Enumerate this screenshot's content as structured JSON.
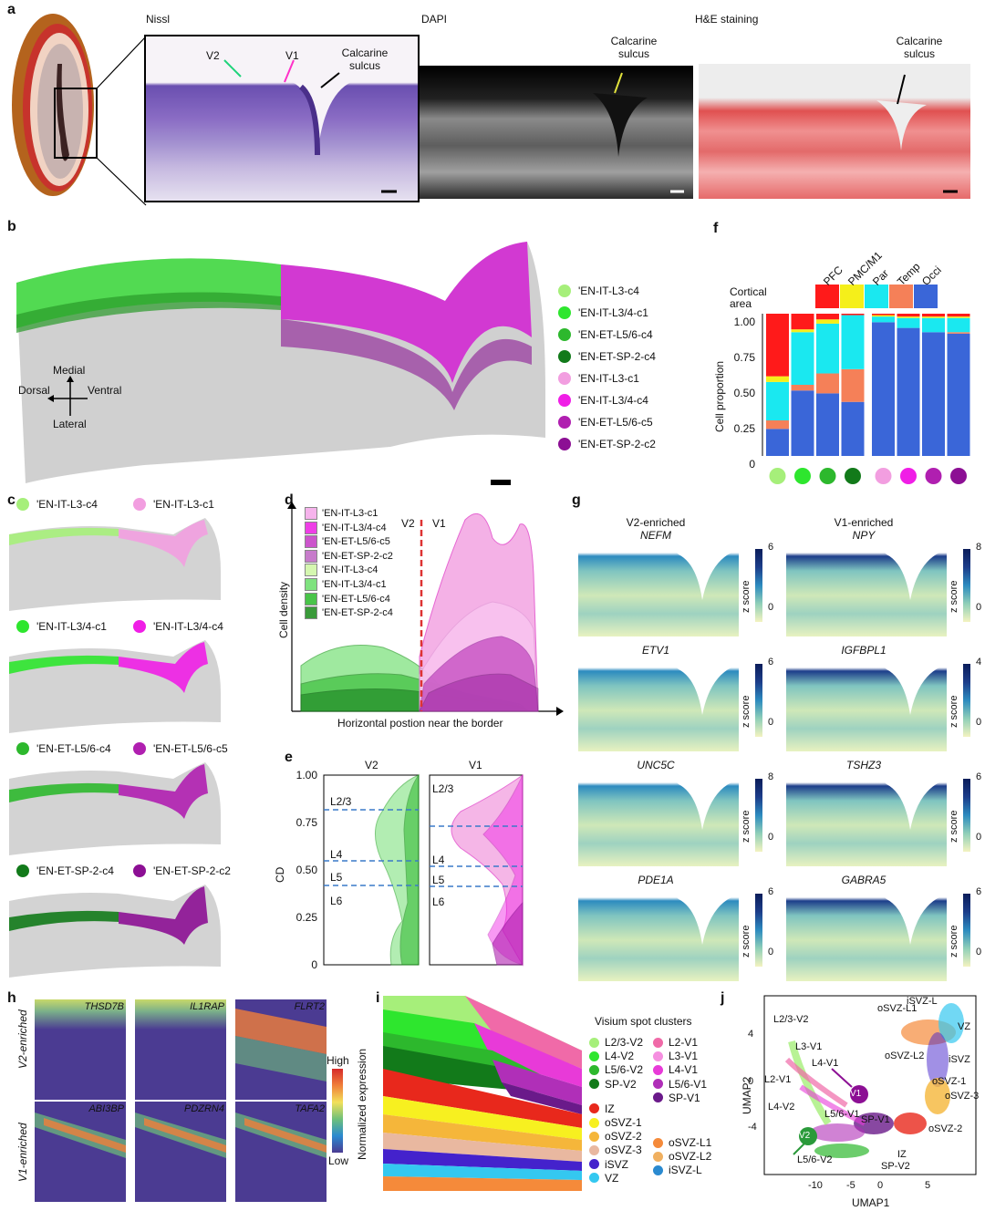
{
  "panels": {
    "a": "a",
    "b": "b",
    "c": "c",
    "d": "d",
    "e": "e",
    "f": "f",
    "g": "g",
    "h": "h",
    "i": "i",
    "j": "j"
  },
  "panel_a": {
    "titles": [
      "Nissl",
      "DAPI",
      "H&E staining"
    ],
    "nissl_labels": {
      "v2": "V2",
      "v1": "V1",
      "sulcus_1": "Calcarine",
      "sulcus_2": "sulcus"
    },
    "dapi_labels": {
      "sulcus_1": "Calcarine",
      "sulcus_2": "sulcus"
    },
    "he_labels": {
      "sulcus_1": "Calcarine",
      "sulcus_2": "sulcus"
    }
  },
  "panel_b": {
    "compass": {
      "medial": "Medial",
      "lateral": "Lateral",
      "dorsal": "Dorsal",
      "ventral": "Ventral"
    },
    "legend": [
      {
        "label": "'EN-IT-L3-c4",
        "color": "#a6ef7a"
      },
      {
        "label": "'EN-IT-L3/4-c1",
        "color": "#2ee62e"
      },
      {
        "label": "'EN-ET-L5/6-c4",
        "color": "#2db82d"
      },
      {
        "label": "'EN-ET-SP-2-c4",
        "color": "#127a1a"
      },
      {
        "label": "'EN-IT-L3-c1",
        "color": "#f29ee0"
      },
      {
        "label": "'EN-IT-L3/4-c4",
        "color": "#f01ee6"
      },
      {
        "label": "'EN-ET-L5/6-c5",
        "color": "#b01fb0"
      },
      {
        "label": "'EN-ET-SP-2-c2",
        "color": "#8c0f94"
      }
    ]
  },
  "panel_c": {
    "rows": [
      {
        "left": "'EN-IT-L3-c4",
        "left_color": "#a6ef7a",
        "right": "'EN-IT-L3-c1",
        "right_color": "#f29ee0"
      },
      {
        "left": "'EN-IT-L3/4-c1",
        "left_color": "#2ee62e",
        "right": "'EN-IT-L3/4-c4",
        "right_color": "#f01ee6"
      },
      {
        "left": "'EN-ET-L5/6-c4",
        "left_color": "#2db82d",
        "right": "'EN-ET-L5/6-c5",
        "right_color": "#b01fb0"
      },
      {
        "left": "'EN-ET-SP-2-c4",
        "left_color": "#127a1a",
        "right": "'EN-ET-SP-2-c2",
        "right_color": "#8c0f94"
      }
    ]
  },
  "panel_d": {
    "ylabel": "Cell density",
    "xlabel": "Horizontal postion near the border",
    "v2": "V2",
    "v1": "V1",
    "legend": [
      {
        "label": "'EN-IT-L3-c1",
        "color": "#f6b3ec"
      },
      {
        "label": "'EN-IT-L3/4-c4",
        "color": "#ee3fe6"
      },
      {
        "label": "'EN-ET-L5/6-c5",
        "color": "#cc55cc"
      },
      {
        "label": "'EN-ET-SP-2-c2",
        "color": "#c77ccb"
      },
      {
        "label": "'EN-IT-L3-c4",
        "color": "#d5f7b0"
      },
      {
        "label": "'EN-IT-L3/4-c1",
        "color": "#7fe27f"
      },
      {
        "label": "'EN-ET-L5/6-c4",
        "color": "#49c449"
      },
      {
        "label": "'EN-ET-SP-2-c4",
        "color": "#3a9a3a"
      }
    ]
  },
  "panel_e": {
    "ylabel": "CD",
    "titles": [
      "V2",
      "V1"
    ],
    "yticks": [
      "1.00",
      "0.75",
      "0.50",
      "0.25",
      "0"
    ],
    "layers": [
      "L2/3",
      "L4",
      "L5",
      "L6"
    ]
  },
  "panel_f": {
    "area_label_1": "Cortical",
    "area_label_2": "area",
    "areas": [
      {
        "label": "PFC",
        "color": "#ff1a1a"
      },
      {
        "label": "PMC/M1",
        "color": "#f5ef1a"
      },
      {
        "label": "Par",
        "color": "#1ae8f0"
      },
      {
        "label": "Temp",
        "color": "#f58058"
      },
      {
        "label": "Occi",
        "color": "#3a66d8"
      }
    ],
    "ylabel": "Cell proportion",
    "yticks": [
      "1.00",
      "0.75",
      "0.50",
      "0.25",
      "0"
    ]
  },
  "chart_data": {
    "type": "bar",
    "stacked": true,
    "categories": [
      "EN-IT-L3-c4",
      "EN-IT-L3/4-c1",
      "EN-ET-L5/6-c4",
      "EN-ET-SP-2-c4",
      "EN-IT-L3-c1",
      "EN-IT-L3/4-c4",
      "EN-ET-L5/6-c5",
      "EN-ET-SP-2-c2"
    ],
    "category_colors": [
      "#a6ef7a",
      "#2ee62e",
      "#2db82d",
      "#127a1a",
      "#f29ee0",
      "#f01ee6",
      "#b01fb0",
      "#8c0f94"
    ],
    "series": [
      {
        "name": "Occi",
        "color": "#3a66d8",
        "values": [
          0.19,
          0.46,
          0.44,
          0.38,
          0.94,
          0.9,
          0.87,
          0.86
        ]
      },
      {
        "name": "Temp",
        "color": "#f58058",
        "values": [
          0.06,
          0.04,
          0.14,
          0.23,
          0.0,
          0.0,
          0.0,
          0.01
        ]
      },
      {
        "name": "Par",
        "color": "#1ae8f0",
        "values": [
          0.27,
          0.37,
          0.35,
          0.38,
          0.04,
          0.07,
          0.1,
          0.1
        ]
      },
      {
        "name": "PMC/M1",
        "color": "#f5ef1a",
        "values": [
          0.04,
          0.02,
          0.03,
          0.0,
          0.01,
          0.01,
          0.01,
          0.01
        ]
      },
      {
        "name": "PFC",
        "color": "#ff1a1a",
        "values": [
          0.44,
          0.11,
          0.04,
          0.01,
          0.01,
          0.02,
          0.02,
          0.02
        ]
      }
    ],
    "ylabel": "Cell proportion",
    "ylim": [
      0,
      1
    ]
  },
  "panel_g": {
    "col_titles": [
      "V2-enriched",
      "V1-enriched"
    ],
    "zlabel": "z score",
    "genes": [
      {
        "left": "NEFM",
        "lmax": "6",
        "right": "NPY",
        "rmax": "8"
      },
      {
        "left": "ETV1",
        "lmax": "6",
        "right": "IGFBPL1",
        "rmax": "4"
      },
      {
        "left": "UNC5C",
        "lmax": "8",
        "right": "TSHZ3",
        "rmax": "6"
      },
      {
        "left": "PDE1A",
        "lmax": "6",
        "right": "GABRA5",
        "rmax": "6"
      }
    ],
    "zmin": "0"
  },
  "panel_h": {
    "row_labels": [
      "V2-enriched",
      "V1-enriched"
    ],
    "genes_top": [
      "THSD7B",
      "IL1RAP",
      "FLRT2"
    ],
    "genes_bottom": [
      "ABI3BP",
      "PDZRN4",
      "TAFA2"
    ],
    "high": "High",
    "low": "Low",
    "cbar_label": "Normalized expression"
  },
  "panel_i": {
    "title": "Visium spot clusters",
    "legend_left": [
      {
        "label": "L2/3-V2",
        "color": "#a6ef7a"
      },
      {
        "label": "L4-V2",
        "color": "#2ee62e"
      },
      {
        "label": "L5/6-V2",
        "color": "#2db82d"
      },
      {
        "label": "SP-V2",
        "color": "#127a1a"
      },
      {
        "label": "IZ",
        "color": "#e8281c"
      },
      {
        "label": "oSVZ-1",
        "color": "#f7f020"
      },
      {
        "label": "oSVZ-2",
        "color": "#f5b63a"
      },
      {
        "label": "oSVZ-3",
        "color": "#e9b8a0"
      },
      {
        "label": "iSVZ",
        "color": "#4422cc"
      },
      {
        "label": "VZ",
        "color": "#34c8f0"
      }
    ],
    "legend_right": [
      {
        "label": "L2-V1",
        "color": "#f06aa8"
      },
      {
        "label": "L3-V1",
        "color": "#f58fe0"
      },
      {
        "label": "L4-V1",
        "color": "#e83ad8"
      },
      {
        "label": "L5/6-V1",
        "color": "#b02fb8"
      },
      {
        "label": "SP-V1",
        "color": "#6a1a8a"
      },
      {
        "label": "oSVZ-L1",
        "color": "#f58a3a"
      },
      {
        "label": "oSVZ-L2",
        "color": "#f0b060"
      },
      {
        "label": "iSVZ-L",
        "color": "#2a8ad0"
      }
    ]
  },
  "panel_j": {
    "xlabel": "UMAP1",
    "ylabel": "UMAP2",
    "xticks": [
      "-10",
      "-5",
      "0",
      "5"
    ],
    "yticks": [
      "4",
      "0",
      "-4"
    ],
    "labels": [
      "L2/3-V2",
      "L3-V1",
      "L4-V1",
      "L2-V1",
      "L4-V2",
      "L5/6-V1",
      "SP-V1",
      "IZ",
      "SP-V2",
      "L5/6-V2",
      "oSVZ-L1",
      "iSVZ-L",
      "VZ",
      "oSVZ-L2",
      "iSVZ",
      "oSVZ-1",
      "oSVZ-3",
      "oSVZ-2"
    ],
    "v1": "V1",
    "v2": "V2"
  }
}
